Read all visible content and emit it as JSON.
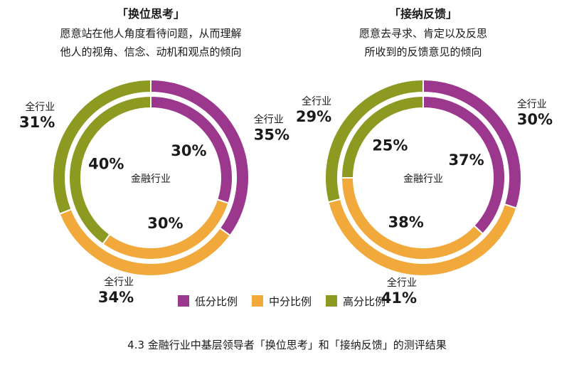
{
  "colors": {
    "low": "#9b378d",
    "mid": "#f2a93b",
    "high": "#8c9a21",
    "text": "#1a1a1a"
  },
  "chart_data": [
    {
      "type": "donut",
      "title": "「换位思考」",
      "subtitle": "愿意站在他人角度看待问题，从而理解\n他人的视角、信念、动机和观点的倾向",
      "center_label": "金融行业",
      "outer_ring_label": "全行业",
      "categories": [
        "低分比例",
        "中分比例",
        "高分比例"
      ],
      "series": [
        {
          "name": "全行业",
          "values": [
            35,
            34,
            31
          ]
        },
        {
          "name": "金融行业",
          "values": [
            30,
            30,
            40
          ]
        }
      ]
    },
    {
      "type": "donut",
      "title": "「接纳反馈」",
      "subtitle": "愿意去寻求、肯定以及反思\n所收到的反馈意见的倾向",
      "center_label": "金融行业",
      "outer_ring_label": "全行业",
      "categories": [
        "低分比例",
        "中分比例",
        "高分比例"
      ],
      "series": [
        {
          "name": "全行业",
          "values": [
            30,
            41,
            29
          ]
        },
        {
          "name": "金融行业",
          "values": [
            37,
            38,
            25
          ]
        }
      ]
    }
  ],
  "legend": {
    "low": "低分比例",
    "mid": "中分比例",
    "high": "高分比例"
  },
  "caption": "4.3 金融行业中基层领导者「换位思考」和「接纳反馈」的测评结果"
}
